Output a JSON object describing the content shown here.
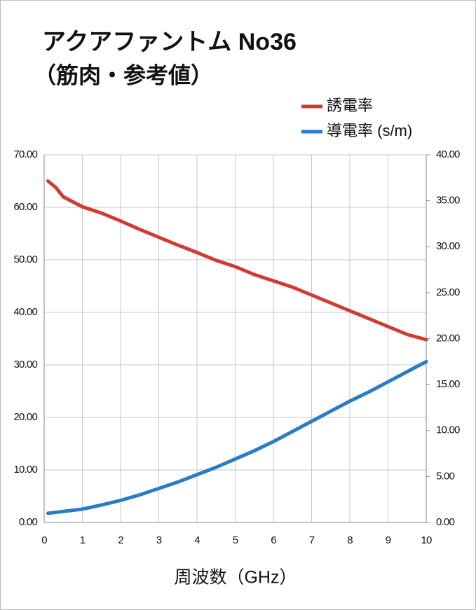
{
  "chart_data": {
    "type": "line",
    "title": "アクアファントム No36",
    "subtitle": "（筋肉・参考値）",
    "xlabel": "周波数（GHz）",
    "x": [
      0.1,
      0.3,
      0.5,
      1,
      1.5,
      2,
      2.5,
      3,
      3.5,
      4,
      4.5,
      5,
      5.5,
      6,
      6.5,
      7,
      7.5,
      8,
      8.5,
      9,
      9.5,
      10
    ],
    "series": [
      {
        "name": "誘電率",
        "color": "#d13b36",
        "axis": "y",
        "values": [
          65.0,
          63.8,
          62.0,
          60.1,
          58.9,
          57.4,
          55.8,
          54.3,
          52.8,
          51.4,
          49.9,
          48.7,
          47.2,
          46.0,
          44.8,
          43.3,
          41.8,
          40.3,
          38.8,
          37.3,
          35.8,
          34.8
        ]
      },
      {
        "name": "導電率 (s/m)",
        "color": "#2a7cc5",
        "axis": "y2",
        "values": [
          1.0,
          1.1,
          1.2,
          1.45,
          1.9,
          2.4,
          3.0,
          3.7,
          4.4,
          5.2,
          6.0,
          6.9,
          7.8,
          8.8,
          9.9,
          11.0,
          12.1,
          13.2,
          14.2,
          15.3,
          16.4,
          17.5
        ]
      }
    ],
    "xlim": [
      0,
      10
    ],
    "xticks": [
      0,
      1,
      2,
      3,
      4,
      5,
      6,
      7,
      8,
      9,
      10
    ],
    "ylim": [
      0,
      70
    ],
    "yticks": [
      {
        "value": 0,
        "label": "0.00"
      },
      {
        "value": 10,
        "label": "10.00"
      },
      {
        "value": 20,
        "label": "20.00"
      },
      {
        "value": 30,
        "label": "30.00"
      },
      {
        "value": 40,
        "label": "40.00"
      },
      {
        "value": 50,
        "label": "50.00"
      },
      {
        "value": 60,
        "label": "60.00"
      },
      {
        "value": 70,
        "label": "70.00"
      }
    ],
    "y2lim": [
      0,
      40
    ],
    "y2ticks": [
      {
        "value": 0,
        "label": "0.00"
      },
      {
        "value": 5,
        "label": "5.00"
      },
      {
        "value": 10,
        "label": "10.00"
      },
      {
        "value": 15,
        "label": "15.00"
      },
      {
        "value": 20,
        "label": "20.00"
      },
      {
        "value": 25,
        "label": "25.00"
      },
      {
        "value": 30,
        "label": "30.00"
      },
      {
        "value": 35,
        "label": "35.00"
      },
      {
        "value": 40,
        "label": "40.00"
      }
    ],
    "grid": true
  }
}
